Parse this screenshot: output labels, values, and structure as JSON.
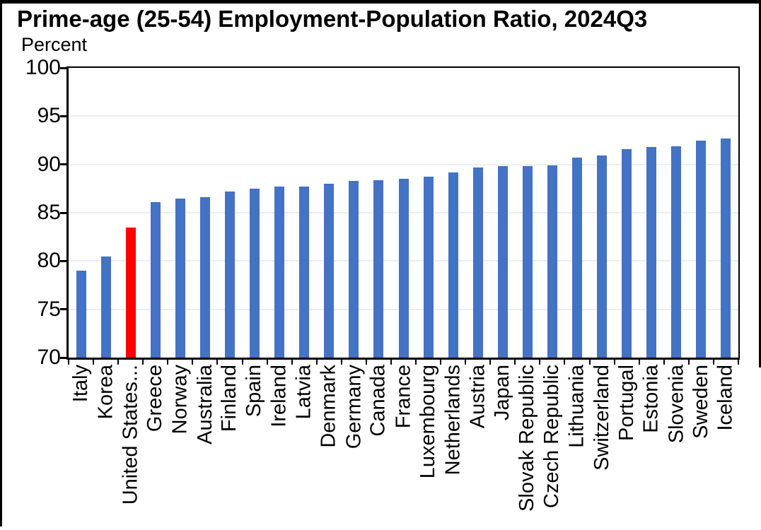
{
  "title": "Prime-age (25-54) Employment-Population Ratio, 2024Q3",
  "unit_label": "Percent",
  "colors": {
    "bar_blue": "#4472C4",
    "bar_highlight_red": "#FF0000",
    "axis_black": "#000000",
    "gridline_gray": "#EDEDED",
    "background": "#FFFFFF"
  },
  "chart_data": {
    "type": "bar",
    "title": "Prime-age (25-54) Employment-Population Ratio, 2024Q3",
    "xlabel": "",
    "ylabel": "Percent",
    "ylim": [
      70,
      100
    ],
    "yticks": [
      70,
      75,
      80,
      85,
      90,
      95,
      100
    ],
    "grid": "horizontal light-gray lines at each y tick",
    "legend": "none",
    "x_label_rotation": 90,
    "categories": [
      "Italy",
      "Korea",
      "United States...",
      "Greece",
      "Norway",
      "Australia",
      "Finland",
      "Spain",
      "Ireland",
      "Latvia",
      "Denmark",
      "Germany",
      "Canada",
      "France",
      "Luxembourg",
      "Netherlands",
      "Austria",
      "Japan",
      "Slovak Republic",
      "Czech Republic",
      "Lithuania",
      "Switzerland",
      "Portugal",
      "Estonia",
      "Slovenia",
      "Sweden",
      "Iceland"
    ],
    "values": [
      79.0,
      80.5,
      83.5,
      86.1,
      86.5,
      86.6,
      87.2,
      87.5,
      87.7,
      87.7,
      88.0,
      88.3,
      88.4,
      88.5,
      88.7,
      89.2,
      89.7,
      89.8,
      89.8,
      89.9,
      90.7,
      90.9,
      91.6,
      91.8,
      91.9,
      92.5,
      92.7
    ],
    "highlight": {
      "index": 2,
      "category": "United States...",
      "color": "#FF0000"
    },
    "default_bar_color": "#4472C4"
  }
}
